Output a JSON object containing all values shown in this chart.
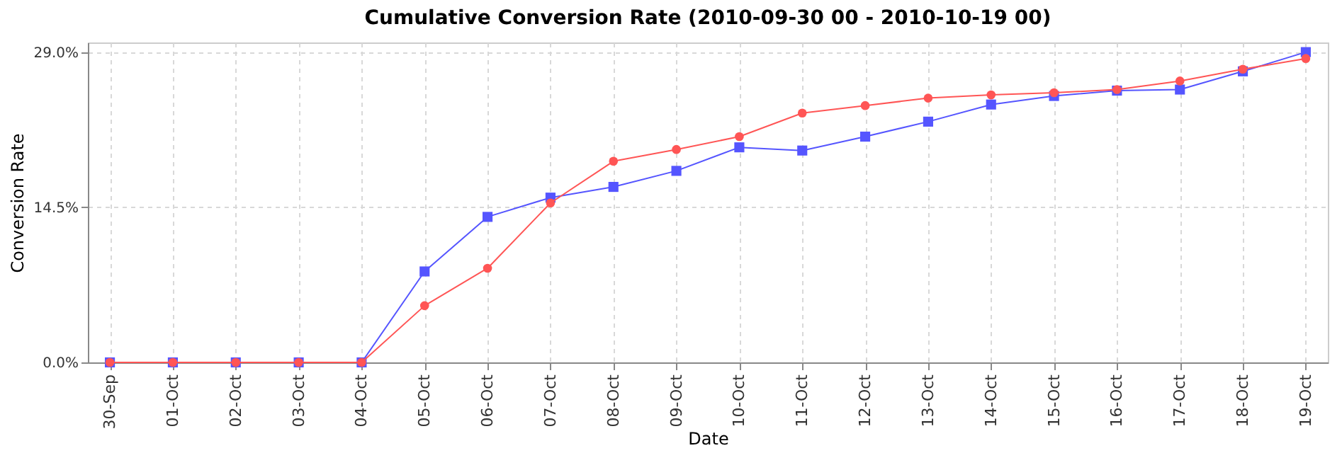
{
  "chart_data": {
    "type": "line",
    "title": "Cumulative Conversion Rate (2010-09-30 00 - 2010-10-19 00)",
    "xlabel": "Date",
    "ylabel": "Conversion Rate",
    "categories": [
      "30-Sep",
      "01-Oct",
      "02-Oct",
      "03-Oct",
      "04-Oct",
      "05-Oct",
      "06-Oct",
      "07-Oct",
      "08-Oct",
      "09-Oct",
      "10-Oct",
      "11-Oct",
      "12-Oct",
      "13-Oct",
      "14-Oct",
      "15-Oct",
      "16-Oct",
      "17-Oct",
      "18-Oct",
      "19-Oct"
    ],
    "series": [
      {
        "color": "#5555ff",
        "marker": "square",
        "values": [
          0,
          0,
          0,
          0,
          0,
          8.5,
          13.6,
          15.4,
          16.4,
          17.9,
          20.1,
          19.8,
          21.1,
          22.5,
          24.1,
          24.9,
          25.4,
          25.5,
          27.2,
          29.0
        ]
      },
      {
        "color": "#ff5555",
        "marker": "circle",
        "values": [
          0,
          0,
          0,
          0,
          0,
          5.3,
          8.8,
          14.9,
          18.8,
          19.9,
          21.1,
          23.3,
          24.0,
          24.7,
          25.0,
          25.2,
          25.5,
          26.3,
          27.4,
          28.4
        ]
      }
    ],
    "ylim": [
      0,
      29.9
    ],
    "yticks": [
      {
        "value": 0,
        "label": "0.0%"
      },
      {
        "value": 14.5,
        "label": "14.5%"
      },
      {
        "value": 29,
        "label": "29.0%"
      }
    ],
    "grid": true,
    "line_style": "solid"
  }
}
